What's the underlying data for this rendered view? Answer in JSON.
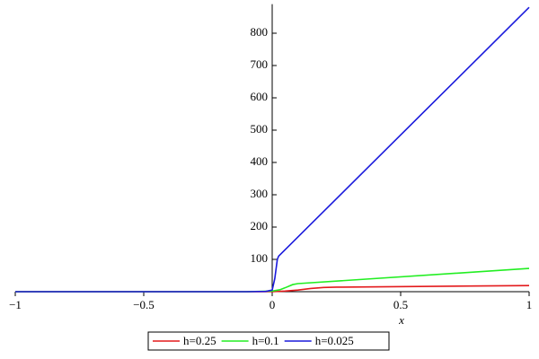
{
  "chart_data": {
    "type": "line",
    "xlabel": "x",
    "xlim": [
      -1,
      1
    ],
    "ylim": [
      0,
      890
    ],
    "xticks": [
      {
        "value": -1,
        "label": "−1"
      },
      {
        "value": -0.5,
        "label": "−0.5"
      },
      0,
      0.5,
      1
    ],
    "yticks": [
      100,
      200,
      300,
      400,
      500,
      600,
      700,
      800
    ],
    "grid": false,
    "legend": "bottom",
    "series": [
      {
        "name": "h=0.25",
        "color": "#e31a1c",
        "x": [
          -1,
          -0.1,
          0,
          0.05,
          0.1,
          0.15,
          0.2,
          0.25,
          1
        ],
        "values": [
          0,
          0,
          0,
          2,
          5,
          10,
          13,
          14,
          19
        ]
      },
      {
        "name": "h=0.1",
        "color": "#22ee22",
        "x": [
          -1,
          -0.1,
          0,
          0.03,
          0.05,
          0.08,
          0.1,
          1
        ],
        "values": [
          0,
          0,
          2,
          6,
          12,
          22,
          25,
          72
        ]
      },
      {
        "name": "h=0.025",
        "color": "#1a1adc",
        "x": [
          -1,
          -0.1,
          -0.025,
          0,
          0.01,
          0.02,
          0.025,
          1
        ],
        "values": [
          0,
          0,
          1,
          5,
          40,
          100,
          110,
          880
        ]
      }
    ]
  }
}
